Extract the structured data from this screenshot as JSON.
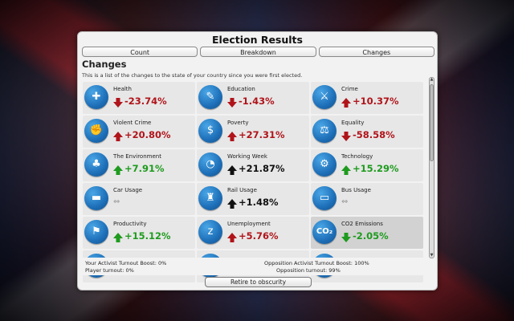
{
  "window": {
    "title": "Election Results"
  },
  "tabs": [
    {
      "label": "Count"
    },
    {
      "label": "Breakdown"
    },
    {
      "label": "Changes"
    }
  ],
  "section": {
    "title": "Changes",
    "description": "This is a list of the changes to the state of your country since you were first elected."
  },
  "stats": [
    {
      "label": "Health",
      "value": "-23.74%",
      "direction": "down",
      "icon": "health-icon",
      "glyph": "✚"
    },
    {
      "label": "Education",
      "value": "-1.43%",
      "direction": "down",
      "icon": "education-icon",
      "glyph": "✎"
    },
    {
      "label": "Crime",
      "value": "+10.37%",
      "direction": "up-red",
      "icon": "crime-icon",
      "glyph": "⚔"
    },
    {
      "label": "Violent Crime",
      "value": "+20.80%",
      "direction": "up-red",
      "icon": "violent-crime-icon",
      "glyph": "✊"
    },
    {
      "label": "Poverty",
      "value": "+27.31%",
      "direction": "up-red",
      "icon": "poverty-icon",
      "glyph": "$"
    },
    {
      "label": "Equality",
      "value": "-58.58%",
      "direction": "down",
      "icon": "equality-icon",
      "glyph": "⚖"
    },
    {
      "label": "The Environment",
      "value": "+7.91%",
      "direction": "up-green",
      "icon": "environment-icon",
      "glyph": "♣"
    },
    {
      "label": "Working Week",
      "value": "+21.87%",
      "direction": "up-black",
      "icon": "working-week-icon",
      "glyph": "◔"
    },
    {
      "label": "Technology",
      "value": "+15.29%",
      "direction": "up-green",
      "icon": "technology-icon",
      "glyph": "⚙"
    },
    {
      "label": "Car Usage",
      "value": "",
      "direction": "flat",
      "icon": "car-icon",
      "glyph": "▬"
    },
    {
      "label": "Rail Usage",
      "value": "+1.48%",
      "direction": "up-black",
      "icon": "train-icon",
      "glyph": "♜"
    },
    {
      "label": "Bus Usage",
      "value": "",
      "direction": "flat",
      "icon": "bus-icon",
      "glyph": "▭"
    },
    {
      "label": "Productivity",
      "value": "+15.12%",
      "direction": "up-green",
      "icon": "productivity-icon",
      "glyph": "⚑"
    },
    {
      "label": "Unemployment",
      "value": "+5.76%",
      "direction": "up-red",
      "icon": "unemployment-icon",
      "glyph": "z"
    },
    {
      "label": "CO2 Emissions",
      "value": "-2.05%",
      "direction": "down-green",
      "icon": "co2-icon",
      "glyph": "CO₂"
    },
    {
      "label": "",
      "value": "",
      "direction": "none",
      "icon": "partial-icon",
      "glyph": ""
    },
    {
      "label": "",
      "value": "",
      "direction": "none",
      "icon": "partial-icon",
      "glyph": ""
    },
    {
      "label": "",
      "value": "",
      "direction": "none",
      "icon": "partial-icon",
      "glyph": ""
    }
  ],
  "footer": {
    "activist_boost": "Your Activist Turnout Boost: 0%",
    "player_turnout": "Player turnout: 0%",
    "opp_activist_boost": "Opposition Activist Turnout Boost: 100%",
    "opp_turnout": "Opposition turnout: 99%",
    "retire_label": "Retire to obscurity"
  },
  "colors": {
    "up_red": "#b0141a",
    "up_green": "#1e9b1e",
    "icon_blue": "#1d6fb8"
  }
}
